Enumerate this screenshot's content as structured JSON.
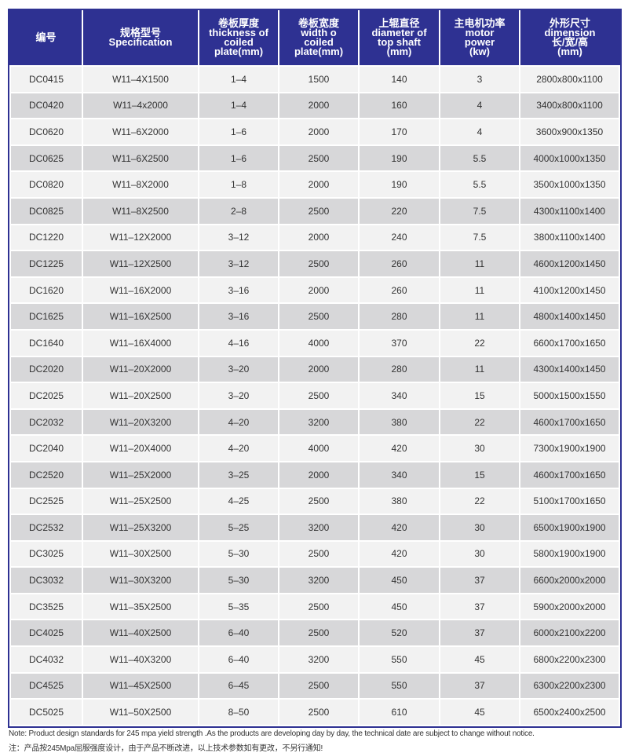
{
  "header": [
    [
      "编号"
    ],
    [
      "规格型号",
      "Specification"
    ],
    [
      "卷板厚度",
      "thickness of",
      "coiled",
      "plate(mm)"
    ],
    [
      "卷板宽度",
      "width o",
      "coiled",
      "plate(mm)"
    ],
    [
      "上辊直径",
      "diameter of",
      "top shaft",
      "(mm)"
    ],
    [
      "主电机功率",
      "motor",
      "power",
      "(kw)"
    ],
    [
      "外形尺寸",
      "dimension",
      "长/宽/高",
      "(mm)"
    ]
  ],
  "rows": [
    [
      "DC0415",
      "W11–4X1500",
      "1–4",
      "1500",
      "140",
      "3",
      "2800x800x1100"
    ],
    [
      "DC0420",
      "W11–4x2000",
      "1–4",
      "2000",
      "160",
      "4",
      "3400x800x1100"
    ],
    [
      "DC0620",
      "W11–6X2000",
      "1–6",
      "2000",
      "170",
      "4",
      "3600x900x1350"
    ],
    [
      "DC0625",
      "W11–6X2500",
      "1–6",
      "2500",
      "190",
      "5.5",
      "4000x1000x1350"
    ],
    [
      "DC0820",
      "W11–8X2000",
      "1–8",
      "2000",
      "190",
      "5.5",
      "3500x1000x1350"
    ],
    [
      "DC0825",
      "W11–8X2500",
      "2–8",
      "2500",
      "220",
      "7.5",
      "4300x1100x1400"
    ],
    [
      "DC1220",
      "W11–12X2000",
      "3–12",
      "2000",
      "240",
      "7.5",
      "3800x1100x1400"
    ],
    [
      "DC1225",
      "W11–12X2500",
      "3–12",
      "2500",
      "260",
      "11",
      "4600x1200x1450"
    ],
    [
      "DC1620",
      "W11–16X2000",
      "3–16",
      "2000",
      "260",
      "11",
      "4100x1200x1450"
    ],
    [
      "DC1625",
      "W11–16X2500",
      "3–16",
      "2500",
      "280",
      "11",
      "4800x1400x1450"
    ],
    [
      "DC1640",
      "W11–16X4000",
      "4–16",
      "4000",
      "370",
      "22",
      "6600x1700x1650"
    ],
    [
      "DC2020",
      "W11–20X2000",
      "3–20",
      "2000",
      "280",
      "11",
      "4300x1400x1450"
    ],
    [
      "DC2025",
      "W11–20X2500",
      "3–20",
      "2500",
      "340",
      "15",
      "5000x1500x1550"
    ],
    [
      "DC2032",
      "W11–20X3200",
      "4–20",
      "3200",
      "380",
      "22",
      "4600x1700x1650"
    ],
    [
      "DC2040",
      "W11–20X4000",
      "4–20",
      "4000",
      "420",
      "30",
      "7300x1900x1900"
    ],
    [
      "DC2520",
      "W11–25X2000",
      "3–25",
      "2000",
      "340",
      "15",
      "4600x1700x1650"
    ],
    [
      "DC2525",
      "W11–25X2500",
      "4–25",
      "2500",
      "380",
      "22",
      "5100x1700x1650"
    ],
    [
      "DC2532",
      "W11–25X3200",
      "5–25",
      "3200",
      "420",
      "30",
      "6500x1900x1900"
    ],
    [
      "DC3025",
      "W11–30X2500",
      "5–30",
      "2500",
      "420",
      "30",
      "5800x1900x1900"
    ],
    [
      "DC3032",
      "W11–30X3200",
      "5–30",
      "3200",
      "450",
      "37",
      "6600x2000x2000"
    ],
    [
      "DC3525",
      "W11–35X2500",
      "5–35",
      "2500",
      "450",
      "37",
      "5900x2000x2000"
    ],
    [
      "DC4025",
      "W11–40X2500",
      "6–40",
      "2500",
      "520",
      "37",
      "6000x2100x2200"
    ],
    [
      "DC4032",
      "W11–40X3200",
      "6–40",
      "3200",
      "550",
      "45",
      "6800x2200x2300"
    ],
    [
      "DC4525",
      "W11–45X2500",
      "6–45",
      "2500",
      "550",
      "37",
      "6300x2200x2300"
    ],
    [
      "DC5025",
      "W11–50X2500",
      "8–50",
      "2500",
      "610",
      "45",
      "6500x2400x2500"
    ]
  ],
  "notes": {
    "en": "Note: Product design standards for 245 mpa yield strength .As the products are developing day by day, the technical date are subject to change without notice.",
    "zh": "注：产品按245Mpa屈服强度设计，由于产品不断改进，以上技术参数如有更改，不另行通知!"
  },
  "colors": {
    "header_bg": "#2e3192",
    "row_light": "#f2f2f2",
    "row_dark": "#d7d7d9"
  }
}
